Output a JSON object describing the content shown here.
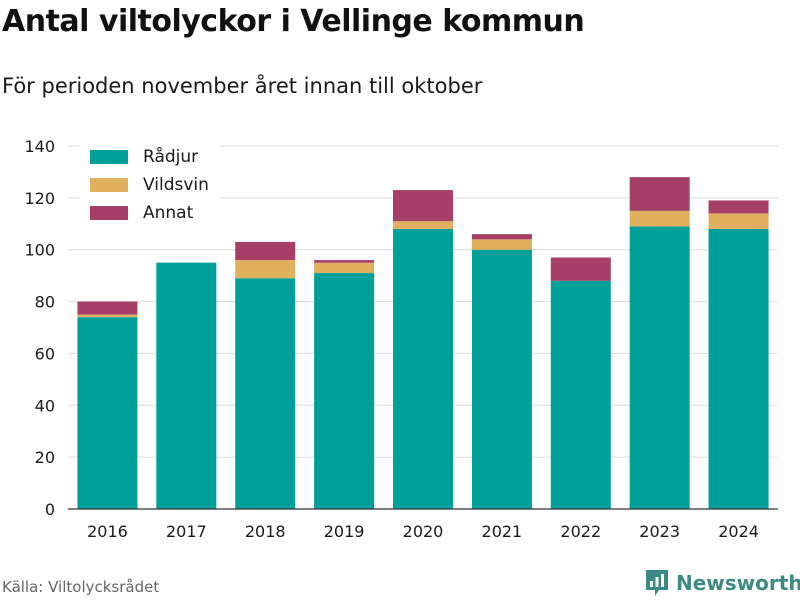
{
  "title": "Antal viltolyckor i Vellinge kommun",
  "subtitle": "För perioden november året innan till oktober",
  "source": "Källa: Viltolycksrådet",
  "brand": {
    "name": "Newsworthy",
    "icon": "newsworthy-logo-icon",
    "color": "#3d8a84"
  },
  "chart_data": {
    "type": "bar",
    "stacked": true,
    "categories": [
      "2016",
      "2017",
      "2018",
      "2019",
      "2020",
      "2021",
      "2022",
      "2023",
      "2024"
    ],
    "series": [
      {
        "name": "Rådjur",
        "color": "#00a09a",
        "values": [
          74,
          95,
          89,
          91,
          108,
          100,
          88,
          109,
          108
        ]
      },
      {
        "name": "Vildsvin",
        "color": "#e0b05e",
        "values": [
          1,
          0,
          7,
          4,
          3,
          4,
          0,
          6,
          6
        ]
      },
      {
        "name": "Annat",
        "color": "#a53f67",
        "values": [
          5,
          0,
          7,
          1,
          12,
          2,
          9,
          13,
          5
        ]
      }
    ],
    "ylim": [
      0,
      140
    ],
    "yticks": [
      0,
      20,
      40,
      60,
      80,
      100,
      120,
      140
    ],
    "xlabel": "",
    "ylabel": "",
    "grid": true,
    "legend": "top-left"
  }
}
